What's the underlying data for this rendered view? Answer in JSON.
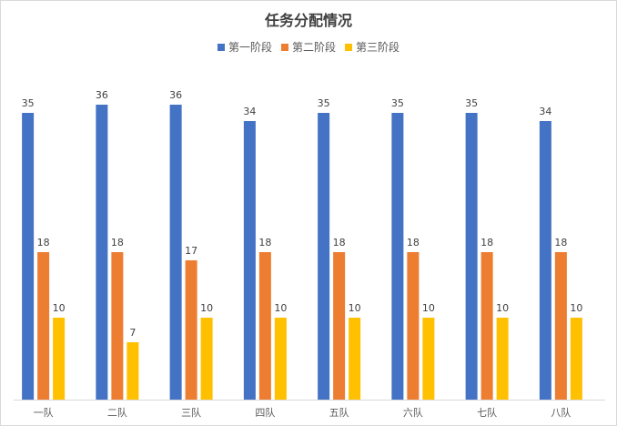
{
  "chart_data": {
    "type": "bar",
    "title": "任务分配情况",
    "categories": [
      "一队",
      "二队",
      "三队",
      "四队",
      "五队",
      "六队",
      "七队",
      "八队"
    ],
    "series": [
      {
        "name": "第一阶段",
        "color": "#4472C4",
        "values": [
          35,
          36,
          36,
          34,
          35,
          35,
          35,
          34
        ]
      },
      {
        "name": "第二阶段",
        "color": "#ED7D31",
        "values": [
          18,
          18,
          17,
          18,
          18,
          18,
          18,
          18
        ]
      },
      {
        "name": "第三阶段",
        "color": "#FFC000",
        "values": [
          10,
          7,
          10,
          10,
          10,
          10,
          10,
          10
        ]
      }
    ],
    "ylim": [
      0,
      40
    ],
    "grid": false,
    "legend_position": "top",
    "data_labels": true
  }
}
